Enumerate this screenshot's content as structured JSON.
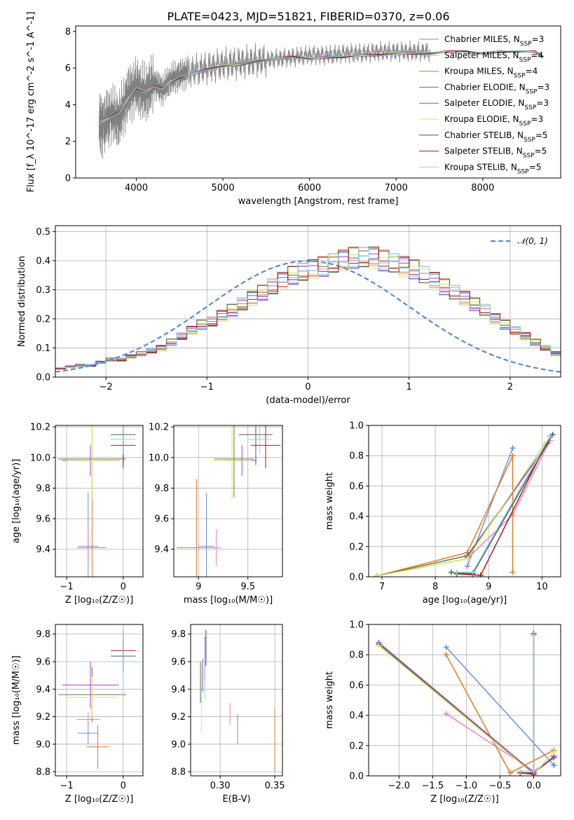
{
  "title": "PLATE=0423, MJD=51821, FIBERID=0370, z=0.06",
  "series": [
    {
      "name": "Chabrier MILES",
      "nssp": "3",
      "color": "#6a8fe0"
    },
    {
      "name": "Salpeter MILES",
      "nssp": "4",
      "color": "#e882c2"
    },
    {
      "name": "Kroupa MILES",
      "nssp": "4",
      "color": "#e07a22"
    },
    {
      "name": "Chabrier ELODIE",
      "nssp": "3",
      "color": "#5a7a4a"
    },
    {
      "name": "Salpeter ELODIE",
      "nssp": "3",
      "color": "#a040c8"
    },
    {
      "name": "Kroupa ELODIE",
      "nssp": "3",
      "color": "#d4e85a"
    },
    {
      "name": "Chabrier STELIB",
      "nssp": "5",
      "color": "#555555"
    },
    {
      "name": "Salpeter STELIB",
      "nssp": "5",
      "color": "#b01818"
    },
    {
      "name": "Kroupa STELIB",
      "nssp": "5",
      "color": "#80d8e8"
    }
  ],
  "chart_data": [
    {
      "id": "spectrum",
      "type": "line",
      "xlabel": "wavelength [Angstrom, rest frame]",
      "ylabel": "Flux [f_λ 10^-17 erg cm^-2 s^-1 A^-1]",
      "xlim": [
        3300,
        8900
      ],
      "ylim": [
        0,
        8.3
      ],
      "xticks": [
        4000,
        5000,
        6000,
        7000,
        8000
      ],
      "yticks": [
        0,
        2,
        4,
        6,
        8
      ],
      "data_color": "#808080",
      "data_x": [
        3570,
        3620,
        3700,
        3800,
        3900,
        4000,
        4100,
        4200,
        4300,
        4400,
        4500,
        4600,
        4800,
        5000,
        5200,
        5400,
        5600,
        5800,
        6000,
        6200,
        6400,
        6600,
        6800,
        7000,
        7200,
        7400
      ],
      "data_y": [
        3.0,
        2.8,
        3.5,
        3.2,
        4.5,
        5.0,
        4.6,
        5.2,
        4.8,
        5.4,
        5.6,
        5.8,
        6.0,
        6.2,
        6.3,
        6.4,
        6.5,
        6.6,
        6.7,
        6.7,
        6.8,
        6.8,
        6.9,
        6.9,
        6.9,
        6.9
      ],
      "model_x": [
        3570,
        3700,
        3800,
        3900,
        4000,
        4100,
        4200,
        4300,
        4400,
        4500,
        4600,
        4800,
        5000,
        5200,
        5400,
        5600,
        5800,
        6000,
        6200,
        6400,
        6600,
        6800,
        7000,
        7200,
        7400,
        7600,
        7800,
        8000,
        8200,
        8400,
        8600,
        8700
      ],
      "model_y": [
        3.0,
        3.3,
        3.6,
        4.3,
        4.9,
        4.7,
        5.0,
        4.9,
        5.3,
        5.5,
        5.6,
        5.9,
        6.1,
        6.2,
        6.4,
        6.5,
        6.6,
        6.5,
        6.6,
        6.6,
        6.7,
        6.7,
        6.8,
        6.8,
        6.8,
        6.9,
        6.9,
        6.8,
        6.9,
        6.9,
        6.9,
        6.6
      ]
    },
    {
      "id": "residuals",
      "type": "bar",
      "xlabel": "(data-model)/error",
      "ylabel": "Normed distribution",
      "xlim": [
        -2.5,
        2.5
      ],
      "ylim": [
        0,
        0.52
      ],
      "xticks": [
        -2,
        -1,
        0,
        1,
        2
      ],
      "yticks": [
        0.0,
        0.1,
        0.2,
        0.3,
        0.4,
        0.5
      ],
      "legend": "𝒩(0, 1)",
      "bin_width": 0.1,
      "bins_start": -2.5,
      "values": [
        0.03,
        0.035,
        0.04,
        0.04,
        0.05,
        0.06,
        0.06,
        0.07,
        0.08,
        0.09,
        0.1,
        0.12,
        0.14,
        0.16,
        0.18,
        0.19,
        0.21,
        0.23,
        0.25,
        0.27,
        0.29,
        0.31,
        0.33,
        0.35,
        0.36,
        0.37,
        0.38,
        0.39,
        0.4,
        0.41,
        0.41,
        0.41,
        0.4,
        0.39,
        0.38,
        0.37,
        0.35,
        0.33,
        0.31,
        0.29,
        0.27,
        0.25,
        0.23,
        0.2,
        0.18,
        0.16,
        0.14,
        0.12,
        0.1,
        0.08
      ]
    },
    {
      "id": "age-z",
      "type": "scatter",
      "xlabel": "Z [log₁₀(Z/Z☉)]",
      "ylabel": "age  [log₁₀(age/yr)]",
      "xlim": [
        -1.2,
        0.35
      ],
      "ylim": [
        9.22,
        10.21
      ],
      "xticks": [
        -1,
        0
      ],
      "yticks": [
        9.4,
        9.6,
        9.8,
        10.0,
        10.2
      ],
      "points": [
        {
          "s": 0,
          "x": -0.62,
          "y": 9.42,
          "xe": 0.18,
          "ye": 0.35
        },
        {
          "s": 1,
          "x": -0.62,
          "y": 9.41,
          "xe": 0.2,
          "ye": 0.12
        },
        {
          "s": 2,
          "x": -0.55,
          "y": 9.41,
          "xe": 0.25,
          "ye": 0.45
        },
        {
          "s": 3,
          "x": -0.55,
          "y": 9.99,
          "xe": 0.6,
          "ye": 0.25
        },
        {
          "s": 4,
          "x": -0.58,
          "y": 9.98,
          "xe": 0.5,
          "ye": 0.1
        },
        {
          "s": 5,
          "x": -0.55,
          "y": 9.98,
          "xe": 0.45,
          "ye": 0.25
        },
        {
          "s": 6,
          "x": 0.0,
          "y": 10.15,
          "xe": 0.22,
          "ye": 0.2
        },
        {
          "s": 7,
          "x": 0.0,
          "y": 10.08,
          "xe": 0.22,
          "ye": 0.15
        },
        {
          "s": 8,
          "x": 0.0,
          "y": 10.12,
          "xe": 0.22,
          "ye": 0.1
        }
      ]
    },
    {
      "id": "age-mass",
      "type": "scatter",
      "xlabel": "mass [log₁₀(M/M☉)]",
      "ylabel": "",
      "xlim": [
        8.75,
        9.85
      ],
      "ylim": [
        9.22,
        10.21
      ],
      "xticks": [
        9.0,
        9.5
      ],
      "yticks": [
        9.4,
        9.6,
        9.8,
        10.0,
        10.2
      ],
      "points": [
        {
          "s": 0,
          "x": 9.08,
          "y": 9.42,
          "xe": 0.08,
          "ye": 0.35
        },
        {
          "s": 1,
          "x": 9.18,
          "y": 9.41,
          "xe": 0.05,
          "ye": 0.12
        },
        {
          "s": 2,
          "x": 8.98,
          "y": 9.41,
          "xe": 0.2,
          "ye": 0.45
        },
        {
          "s": 3,
          "x": 9.36,
          "y": 9.99,
          "xe": 0.2,
          "ye": 0.25
        },
        {
          "s": 4,
          "x": 9.44,
          "y": 9.98,
          "xe": 0.15,
          "ye": 0.1
        },
        {
          "s": 5,
          "x": 9.34,
          "y": 9.98,
          "xe": 0.2,
          "ye": 0.25
        },
        {
          "s": 6,
          "x": 9.58,
          "y": 10.15,
          "xe": 0.17,
          "ye": 0.2
        },
        {
          "s": 7,
          "x": 9.68,
          "y": 10.08,
          "xe": 0.15,
          "ye": 0.15
        },
        {
          "s": 8,
          "x": 9.62,
          "y": 10.12,
          "xe": 0.12,
          "ye": 0.1
        }
      ]
    },
    {
      "id": "weight-age",
      "type": "line",
      "xlabel": "age  [log₁₀(age/yr)]",
      "ylabel": "mass weight",
      "xlim": [
        6.75,
        10.35
      ],
      "ylim": [
        0,
        1.0
      ],
      "xticks": [
        7,
        8,
        9,
        10
      ],
      "yticks": [
        0.0,
        0.2,
        0.4,
        0.6,
        0.8,
        1.0
      ],
      "lines": [
        {
          "s": 0,
          "x": [
            8.6,
            9.45,
            9.45
          ],
          "y": [
            0.07,
            0.85,
            0.85
          ]
        },
        {
          "s": 1,
          "x": [
            6.9,
            8.6,
            9.45,
            10.15
          ],
          "y": [
            0.005,
            0.12,
            0.41,
            0.9
          ]
        },
        {
          "s": 2,
          "x": [
            6.9,
            8.6,
            9.45,
            9.45
          ],
          "y": [
            0.005,
            0.16,
            0.8,
            0.03
          ]
        },
        {
          "s": 3,
          "x": [
            6.9,
            8.6,
            10.1
          ],
          "y": [
            0.005,
            0.14,
            0.88
          ]
        },
        {
          "s": 4,
          "x": [
            8.6,
            10.1
          ],
          "y": [
            0.13,
            0.88
          ]
        },
        {
          "s": 5,
          "x": [
            6.9,
            8.6,
            10.05
          ],
          "y": [
            0.005,
            0.12,
            0.88
          ]
        },
        {
          "s": 6,
          "x": [
            8.3,
            8.7,
            10.2
          ],
          "y": [
            0.03,
            0.02,
            0.94
          ]
        },
        {
          "s": 7,
          "x": [
            8.4,
            8.85,
            10.15
          ],
          "y": [
            0.02,
            0.01,
            0.93
          ]
        },
        {
          "s": 8,
          "x": [
            8.4,
            8.7,
            10.15
          ],
          "y": [
            0.03,
            0.03,
            0.93
          ]
        }
      ]
    },
    {
      "id": "mass-z",
      "type": "scatter",
      "xlabel": "Z [log₁₀(Z/Z☉)]",
      "ylabel": "mass [log₁₀(M/M☉)]",
      "xlim": [
        -1.2,
        0.35
      ],
      "ylim": [
        8.77,
        9.87
      ],
      "xticks": [
        -1,
        0
      ],
      "yticks": [
        8.8,
        9.0,
        9.2,
        9.4,
        9.6,
        9.8
      ],
      "points": [
        {
          "s": 0,
          "x": -0.62,
          "y": 9.08,
          "xe": 0.18,
          "ye": 0.08
        },
        {
          "s": 1,
          "x": -0.62,
          "y": 9.18,
          "xe": 0.2,
          "ye": 0.05
        },
        {
          "s": 2,
          "x": -0.45,
          "y": 8.98,
          "xe": 0.2,
          "ye": 0.16
        },
        {
          "s": 3,
          "x": -0.55,
          "y": 9.36,
          "xe": 0.6,
          "ye": 0.2
        },
        {
          "s": 4,
          "x": -0.58,
          "y": 9.43,
          "xe": 0.5,
          "ye": 0.17
        },
        {
          "s": 5,
          "x": -0.55,
          "y": 9.34,
          "xe": 0.45,
          "ye": 0.15
        },
        {
          "s": 6,
          "x": 0.0,
          "y": 9.64,
          "xe": 0.22,
          "ye": 0.1
        },
        {
          "s": 7,
          "x": 0.0,
          "y": 9.68,
          "xe": 0.22,
          "ye": 0.15
        },
        {
          "s": 8,
          "x": 0.0,
          "y": 9.6,
          "xe": 0.22,
          "ye": 0.25
        }
      ]
    },
    {
      "id": "mass-ebv",
      "type": "scatter",
      "xlabel": "E(B-V)",
      "ylabel": "",
      "xlim": [
        0.273,
        0.357
      ],
      "ylim": [
        8.77,
        9.87
      ],
      "xticks": [
        0.3,
        0.35
      ],
      "xtick_labels": [
        "0.30",
        "0.35"
      ],
      "yticks": [
        8.8,
        9.0,
        9.2,
        9.4,
        9.6,
        9.8
      ],
      "points": [
        {
          "s": 0,
          "x": 0.316,
          "y": 9.11,
          "xe": 0,
          "ye": 0.11
        },
        {
          "s": 1,
          "x": 0.309,
          "y": 9.22,
          "xe": 0,
          "ye": 0.08
        },
        {
          "s": 2,
          "x": 0.35,
          "y": 9.03,
          "xe": 0,
          "ye": 0.23
        },
        {
          "s": 3,
          "x": 0.282,
          "y": 9.45,
          "xe": 0,
          "ye": 0.15
        },
        {
          "s": 4,
          "x": 0.284,
          "y": 9.5,
          "xe": 0,
          "ye": 0.12
        },
        {
          "s": 5,
          "x": 0.283,
          "y": 9.33,
          "xe": 0,
          "ye": 0.25
        },
        {
          "s": 6,
          "x": 0.286,
          "y": 9.62,
          "xe": 0,
          "ye": 0.16
        },
        {
          "s": 7,
          "x": 0.287,
          "y": 9.7,
          "xe": 0,
          "ye": 0.13
        },
        {
          "s": 8,
          "x": 0.286,
          "y": 9.55,
          "xe": 0,
          "ye": 0.22
        }
      ]
    },
    {
      "id": "weight-z",
      "type": "line",
      "xlabel": "Z [log₁₀(Z/Z☉)]",
      "ylabel": "mass weight",
      "xlim": [
        -2.45,
        0.4
      ],
      "ylim": [
        0,
        1.0
      ],
      "xticks": [
        -2.0,
        -1.5,
        -1.0,
        -0.5,
        0.0
      ],
      "xtick_labels": [
        "−2.0",
        "−1.5",
        "−1.0",
        "−0.5",
        "0.0"
      ],
      "yticks": [
        0.0,
        0.2,
        0.4,
        0.6,
        0.8,
        1.0
      ],
      "lines": [
        {
          "s": 0,
          "x": [
            -1.3,
            0.3,
            0.3
          ],
          "y": [
            0.85,
            0.07,
            0.07
          ]
        },
        {
          "s": 1,
          "x": [
            -1.3,
            0.0,
            0.3
          ],
          "y": [
            0.41,
            0.03,
            0.12
          ]
        },
        {
          "s": 2,
          "x": [
            -1.3,
            -0.35,
            0.3
          ],
          "y": [
            0.8,
            0.02,
            0.17
          ]
        },
        {
          "s": 3,
          "x": [
            -2.3,
            0.0,
            0.3
          ],
          "y": [
            0.87,
            0.02,
            0.12
          ]
        },
        {
          "s": 4,
          "x": [
            -2.3,
            0.0,
            0.3
          ],
          "y": [
            0.88,
            0.02,
            0.13
          ]
        },
        {
          "s": 5,
          "x": [
            -2.3,
            0.0,
            0.3
          ],
          "y": [
            0.86,
            0.01,
            0.16
          ]
        },
        {
          "s": 6,
          "x": [
            -0.2,
            0.0,
            0.0
          ],
          "y": [
            0.02,
            0.02,
            0.94
          ]
        },
        {
          "s": 7,
          "x": [
            -0.2,
            0.0,
            0.0
          ],
          "y": [
            0.02,
            0.01,
            0.93
          ]
        },
        {
          "s": 8,
          "x": [
            -0.2,
            0.0,
            0.0
          ],
          "y": [
            0.03,
            0.03,
            0.93
          ]
        }
      ]
    }
  ]
}
